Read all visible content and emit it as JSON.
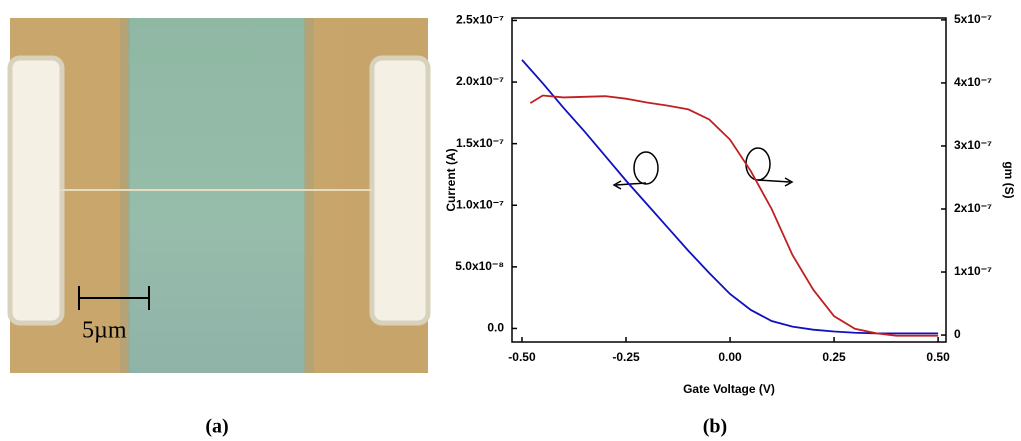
{
  "figure": {
    "panel_a": "(a)",
    "panel_b": "(b)",
    "scale_bar": "5µm"
  },
  "chart_data": {
    "type": "line",
    "xlabel": "Gate Voltage (V)",
    "ylabel": "Current (A)",
    "y2label": "gm (S)",
    "xlim": [
      -0.524,
      0.519
    ],
    "ylim": [
      -1.1e-08,
      2.52e-07
    ],
    "y2lim": [
      -1.1e-08,
      5.03e-07
    ],
    "xticks": [
      {
        "value": -0.5,
        "label": "-0.50"
      },
      {
        "value": -0.25,
        "label": "-0.25"
      },
      {
        "value": 0,
        "label": "0.00"
      },
      {
        "value": 0.25,
        "label": "0.25"
      },
      {
        "value": 0.5,
        "label": "0.50"
      }
    ],
    "yticks": [
      {
        "value": 0,
        "label": "0.0"
      },
      {
        "value": 5e-08,
        "label": "5.0x10⁻⁸"
      },
      {
        "value": 1e-07,
        "label": "1.0x10⁻⁷"
      },
      {
        "value": 1.5e-07,
        "label": "1.5x10⁻⁷"
      },
      {
        "value": 2e-07,
        "label": "2.0x10⁻⁷"
      },
      {
        "value": 2.5e-07,
        "label": "2.5x10⁻⁷"
      }
    ],
    "y2ticks": [
      0,
      {
        "value": 1e-07,
        "label": "1x10⁻⁷"
      },
      {
        "value": 2e-07,
        "label": "2x10⁻⁷"
      },
      {
        "value": 3e-07,
        "label": "3x10⁻⁷"
      },
      {
        "value": 4e-07,
        "label": "4x10⁻⁷"
      },
      {
        "value": 5e-07,
        "label": "5x10⁻⁷"
      }
    ],
    "series": [
      {
        "color": "#1010c0",
        "x": [
          -0.5,
          -0.45,
          -0.4,
          -0.35,
          -0.3,
          -0.25,
          -0.2,
          -0.15,
          -0.1,
          -0.05,
          0,
          0.05,
          0.1,
          0.15,
          0.2,
          0.25,
          0.3,
          0.35,
          0.4,
          0.45,
          0.5
        ],
        "values": [
          2.18e-07,
          1.99e-07,
          1.79e-07,
          1.6e-07,
          1.4e-07,
          1.2e-07,
          1.01e-07,
          8.2e-08,
          6.3e-08,
          4.5e-08,
          2.8e-08,
          1.5e-08,
          6e-09,
          1.5e-09,
          -1e-09,
          -2.5e-09,
          -3.5e-09,
          -4e-09,
          -4e-09,
          -4e-09,
          -4e-09
        ]
      },
      {
        "color": "#c02020",
        "axis": "y2",
        "x": [
          -0.48,
          -0.45,
          -0.4,
          -0.35,
          -0.3,
          -0.25,
          -0.2,
          -0.15,
          -0.1,
          -0.05,
          0,
          0.05,
          0.1,
          0.15,
          0.2,
          0.25,
          0.3,
          0.35,
          0.4,
          0.45,
          0.5
        ],
        "values": [
          3.68e-07,
          3.8e-07,
          3.77e-07,
          3.78e-07,
          3.79e-07,
          3.75e-07,
          3.69e-07,
          3.64e-07,
          3.58e-07,
          3.42e-07,
          3.1e-07,
          2.6e-07,
          2e-07,
          1.27e-07,
          7.2e-08,
          3e-08,
          1e-08,
          3e-09,
          -1e-09,
          -1e-09,
          -1e-09
        ]
      }
    ]
  }
}
